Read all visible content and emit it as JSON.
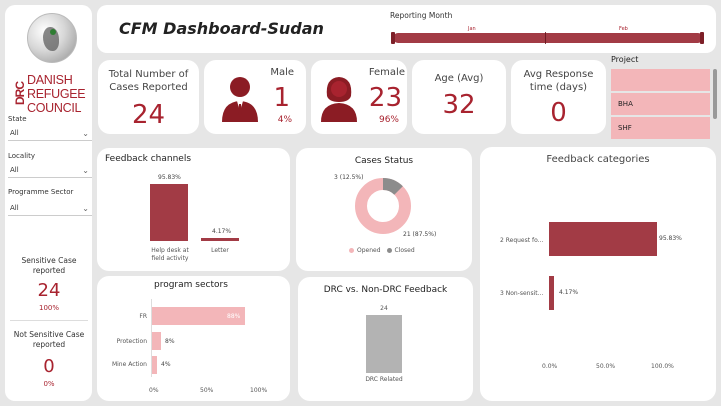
{
  "sidebar": {
    "logo_abbrev": "DRC",
    "logo_lines": [
      "DANISH",
      "REFUGEE",
      "COUNCIL"
    ],
    "filters": [
      {
        "label": "State",
        "value": "All"
      },
      {
        "label": "Locality",
        "value": "All"
      },
      {
        "label": "Programme Sector",
        "value": "All"
      }
    ],
    "sensitive": {
      "title": "Sensitive Case reported",
      "value": "24",
      "pct": "100%"
    },
    "not_sensitive": {
      "title": "Not Sensitive Case reported",
      "value": "0",
      "pct": "0%"
    }
  },
  "header": {
    "title": "CFM Dashboard-Sudan",
    "reporting_month_label": "Reporting Month",
    "month_ticks": [
      "Jan",
      "Feb"
    ]
  },
  "kpis": {
    "total": {
      "title": "Total Number of Cases Reported",
      "value": "24"
    },
    "male": {
      "title": "Male",
      "value": "1",
      "pct": "4%"
    },
    "female": {
      "title": "Female",
      "value": "23",
      "pct": "96%"
    },
    "age": {
      "title": "Age (Avg)",
      "value": "32"
    },
    "response": {
      "title": "Avg Response time (days)",
      "value": "0"
    }
  },
  "project": {
    "title": "Project",
    "items": [
      "",
      "BHA",
      "SHF"
    ]
  },
  "feedback_channels": {
    "title": "Feedback channels",
    "labels": [
      "95.83%",
      "4.17%"
    ],
    "categories": [
      "Help desk at field activity",
      "Letter"
    ]
  },
  "cases_status": {
    "title": "Cases Status",
    "closed_label": "3 (12.5%)",
    "opened_label": "21 (87.5%)",
    "legend": [
      "Opened",
      "Closed"
    ]
  },
  "feedback_categories": {
    "title": "Feedback categories",
    "categories": [
      "2 Request fo...",
      "3 Non-sensit..."
    ],
    "labels": [
      "95.83%",
      "4.17%"
    ],
    "ticks": [
      "0.0%",
      "50.0%",
      "100.0%"
    ]
  },
  "program_sectors": {
    "title": "program sectors",
    "categories": [
      "FR",
      "Protection",
      "Mine Action"
    ],
    "labels": [
      "88%",
      "8%",
      "4%"
    ],
    "ticks": [
      "0%",
      "50%",
      "100%"
    ]
  },
  "drc_feedback": {
    "title": "DRC vs. Non-DRC Feedback",
    "value_label": "24",
    "category": "DRC Related"
  },
  "chart_data": [
    {
      "type": "bar",
      "title": "Feedback channels",
      "categories": [
        "Help desk at field activity",
        "Letter"
      ],
      "values": [
        95.83,
        4.17
      ]
    },
    {
      "type": "pie",
      "title": "Cases Status",
      "categories": [
        "Opened",
        "Closed"
      ],
      "values": [
        21,
        3
      ],
      "colors": [
        "#f3b6b9",
        "#8c8c8c"
      ]
    },
    {
      "type": "bar",
      "title": "Feedback categories",
      "orientation": "horizontal",
      "categories": [
        "2 Request fo...",
        "3 Non-sensit..."
      ],
      "values": [
        95.83,
        4.17
      ],
      "xlim": [
        0,
        100
      ]
    },
    {
      "type": "bar",
      "title": "program sectors",
      "orientation": "horizontal",
      "categories": [
        "FR",
        "Protection",
        "Mine Action"
      ],
      "values": [
        88,
        8,
        4
      ],
      "xlim": [
        0,
        100
      ]
    },
    {
      "type": "bar",
      "title": "DRC vs. Non-DRC Feedback",
      "categories": [
        "DRC Related"
      ],
      "values": [
        24
      ]
    }
  ],
  "colors": {
    "accent": "#a8232f",
    "bar_dark": "#a23b45",
    "bar_light": "#f3b6b9",
    "gray": "#b3b3b3"
  }
}
